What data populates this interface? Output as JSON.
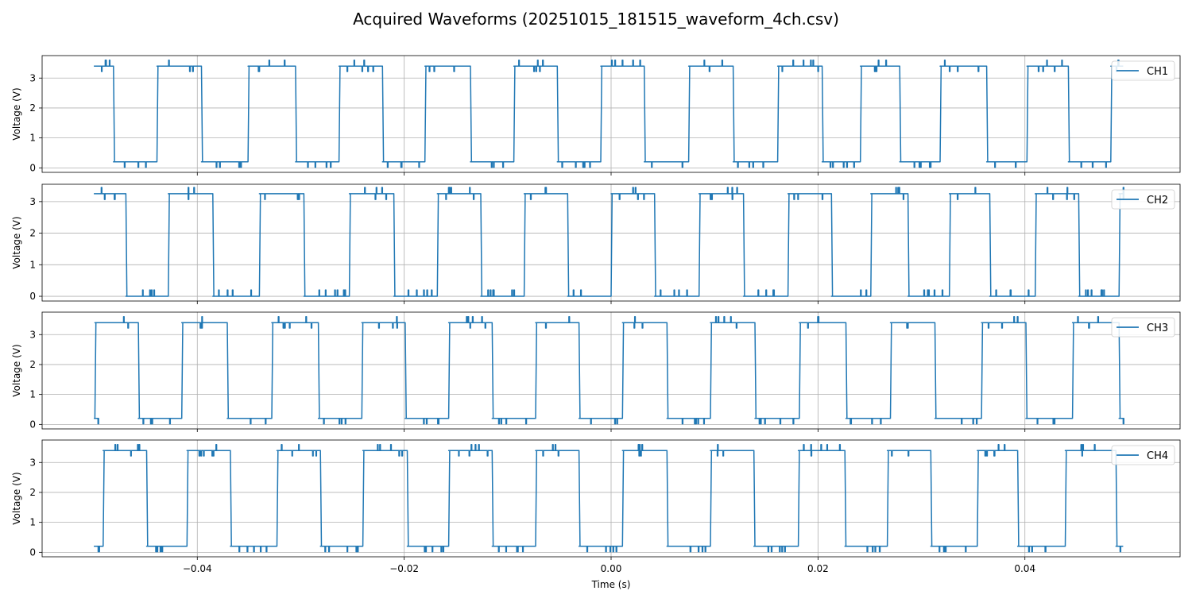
{
  "chart_data": {
    "type": "line",
    "title": "Acquired Waveforms (20251015_181515_waveform_4ch.csv)",
    "xlabel": "Time (s)",
    "ylabel": "Voltage (V)",
    "xlim": [
      -0.055,
      0.055
    ],
    "xticks": [
      -0.04,
      -0.02,
      0.0,
      0.02,
      0.04
    ],
    "xtick_labels": [
      "−0.04",
      "−0.02",
      "0.00",
      "0.02",
      "0.04"
    ],
    "grid": true,
    "legend_position": "upper-right",
    "line_color": "#1f77b4",
    "t_start": -0.05,
    "t_end": 0.0495,
    "panels": [
      {
        "name": "CH1",
        "ylim": [
          -0.15,
          3.75
        ],
        "yticks": [
          0,
          1,
          2,
          3
        ],
        "high": 3.4,
        "low": 0.2,
        "initial_level": "high",
        "transitions": [
          -0.0481,
          -0.0439,
          -0.0396,
          -0.0351,
          -0.0305,
          -0.0263,
          -0.0221,
          -0.018,
          -0.0136,
          -0.0094,
          -0.0052,
          -0.001,
          0.0032,
          0.0075,
          0.0118,
          0.0161,
          0.0204,
          0.0241,
          0.0279,
          0.0318,
          0.0363,
          0.0402,
          0.0442,
          0.0483
        ]
      },
      {
        "name": "CH2",
        "ylim": [
          -0.15,
          3.55
        ],
        "yticks": [
          0,
          1,
          2,
          3
        ],
        "high": 3.25,
        "low": 0.0,
        "initial_level": "high",
        "transitions": [
          -0.0469,
          -0.0428,
          -0.0385,
          -0.034,
          -0.0297,
          -0.0253,
          -0.021,
          -0.0168,
          -0.0126,
          -0.0084,
          -0.0042,
          0.0,
          0.0042,
          0.0085,
          0.0128,
          0.0171,
          0.0213,
          0.0251,
          0.0287,
          0.0327,
          0.0366,
          0.041,
          0.0452,
          0.0491
        ]
      },
      {
        "name": "CH3",
        "ylim": [
          -0.15,
          3.75
        ],
        "yticks": [
          0,
          1,
          2,
          3
        ],
        "high": 3.4,
        "low": 0.2,
        "initial_level": "low",
        "transitions": [
          -0.0499,
          -0.0457,
          -0.0415,
          -0.0371,
          -0.0328,
          -0.0283,
          -0.0241,
          -0.0199,
          -0.0157,
          -0.0115,
          -0.0073,
          -0.0031,
          0.0011,
          0.0054,
          0.0096,
          0.0139,
          0.0182,
          0.0227,
          0.027,
          0.0313,
          0.0358,
          0.0401,
          0.0446,
          0.0491
        ]
      },
      {
        "name": "CH4",
        "ylim": [
          -0.15,
          3.75
        ],
        "yticks": [
          0,
          1,
          2,
          3
        ],
        "high": 3.4,
        "low": 0.2,
        "initial_level": "low",
        "transitions": [
          -0.0491,
          -0.0449,
          -0.041,
          -0.0368,
          -0.0323,
          -0.0281,
          -0.024,
          -0.0197,
          -0.0157,
          -0.0115,
          -0.0073,
          -0.0031,
          0.0011,
          0.0054,
          0.0096,
          0.0138,
          0.0181,
          0.0226,
          0.0267,
          0.0309,
          0.0354,
          0.0393,
          0.0439,
          0.0488
        ]
      }
    ]
  }
}
